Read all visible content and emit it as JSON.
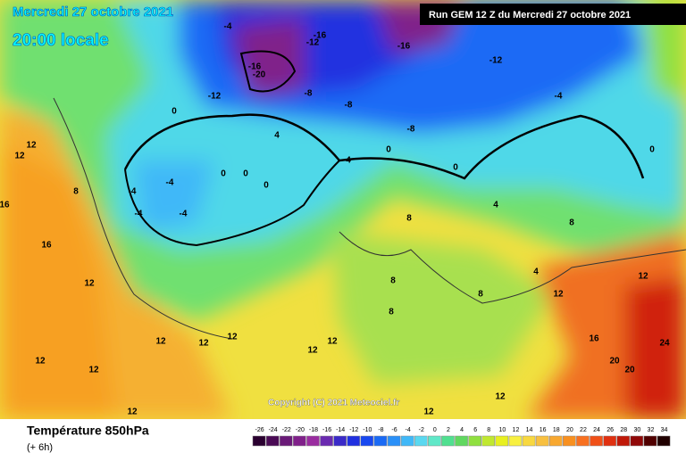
{
  "header": {
    "title": "Mercredi 27 octobre 2021",
    "time": "20:00 locale",
    "run": "Run GEM 12 Z du Mercredi 27 octobre 2021"
  },
  "copyright": "Copyright (C) 2021 Meteociel.fr",
  "footer": {
    "title": "Température 850hPa",
    "step": "(+ 6h)"
  },
  "map_labels": [
    "-4",
    "-12",
    "-16",
    "-16",
    "-20",
    "-8",
    "-12",
    "-8",
    "-16",
    "-12",
    "-4",
    "-8",
    "0",
    "4",
    "0",
    "4",
    "0",
    "0",
    "-4",
    "-4",
    "-4",
    "-4",
    "0",
    "0",
    "0",
    "8",
    "12",
    "12",
    "16",
    "16",
    "12",
    "12",
    "12",
    "12",
    "12",
    "12",
    "12",
    "8",
    "8",
    "4",
    "12",
    "12",
    "16",
    "20",
    "20",
    "24",
    "12",
    "12",
    "8",
    "12",
    "12",
    "8",
    "4",
    "8"
  ],
  "scale": {
    "values": [
      -26,
      -24,
      -22,
      -20,
      -18,
      -16,
      -14,
      -12,
      -10,
      -8,
      -6,
      -4,
      -2,
      0,
      2,
      4,
      6,
      8,
      10,
      12,
      14,
      16,
      18,
      20,
      22,
      24,
      26,
      28,
      30,
      32,
      34
    ],
    "colors": [
      "#2a0030",
      "#4a0a55",
      "#6a1a78",
      "#80208a",
      "#9a2ca0",
      "#6a2ab0",
      "#3a2ac8",
      "#2030e0",
      "#1848f0",
      "#1a6af5",
      "#2a90f8",
      "#40b8f8",
      "#5ad8f0",
      "#60e8c8",
      "#50e090",
      "#60d860",
      "#90e040",
      "#c0e830",
      "#e8f020",
      "#f8f040",
      "#f8d840",
      "#f8c040",
      "#f8a830",
      "#f89020",
      "#f87020",
      "#f05018",
      "#e03010",
      "#c01808",
      "#900808",
      "#500000",
      "#200000"
    ]
  }
}
